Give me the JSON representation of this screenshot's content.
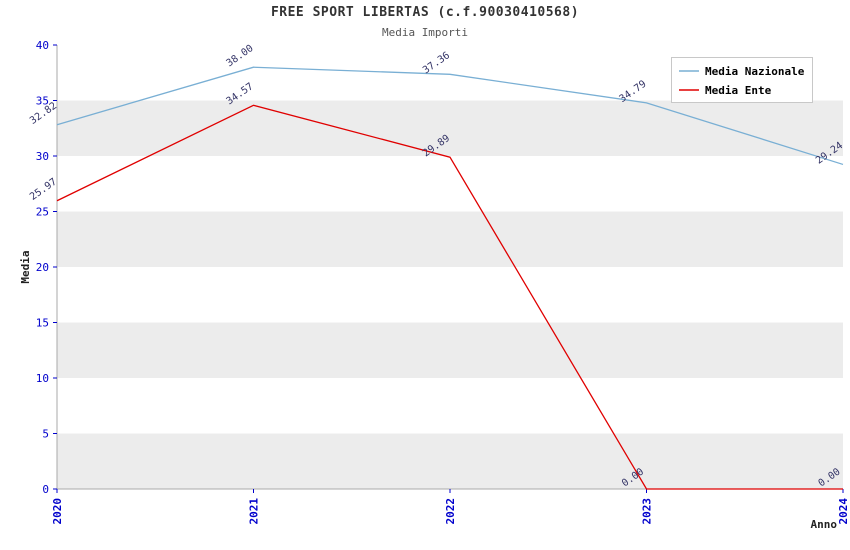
{
  "header": {
    "title": "FREE SPORT LIBERTAS (c.f.90030410568)",
    "subtitle": "Media Importi"
  },
  "chart_data": {
    "type": "line",
    "x": [
      2020,
      2021,
      2022,
      2023,
      2024
    ],
    "series": [
      {
        "name": "Media Nazionale",
        "color": "#79afd4",
        "values": [
          32.82,
          38.0,
          37.36,
          34.79,
          29.24
        ]
      },
      {
        "name": "Media Ente",
        "color": "#e00000",
        "values": [
          25.97,
          34.57,
          29.89,
          0.0,
          0.0
        ]
      }
    ],
    "xlabel": "Anno",
    "ylabel": "Media",
    "ylim": [
      0,
      40
    ],
    "yticks": [
      0,
      5,
      10,
      15,
      20,
      25,
      30,
      35,
      40
    ],
    "legend_position": "top-right",
    "grid": "horizontal-bands",
    "band_colors": [
      "#ececec",
      "#ffffff"
    ],
    "tick_color": "#0000cc",
    "value_label_color": "#333366"
  }
}
